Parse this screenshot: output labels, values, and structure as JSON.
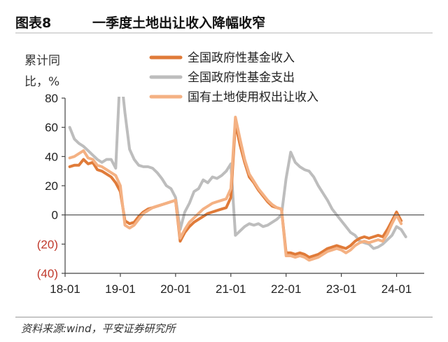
{
  "figure": {
    "number": "图表8",
    "title": "一季度土地出让收入降幅收窄",
    "source": "资料来源:wind，平安证券研究所"
  },
  "colors": {
    "axis": "#444444",
    "tick_negative": "#c0392b",
    "tick_positive": "#222222"
  },
  "chart_data": {
    "type": "line",
    "title": "一季度土地出让收入降幅收窄",
    "ylabel": "累计同比，%",
    "xlabel": "",
    "ylim": [
      -40,
      80
    ],
    "xlim": [
      0,
      78
    ],
    "yticks": [
      {
        "value": 80,
        "label": "80"
      },
      {
        "value": 60,
        "label": "60"
      },
      {
        "value": 40,
        "label": "40"
      },
      {
        "value": 20,
        "label": "20"
      },
      {
        "value": 0,
        "label": "0"
      },
      {
        "value": -20,
        "label": "(20)"
      },
      {
        "value": -40,
        "label": "(40)"
      }
    ],
    "xticks": [
      {
        "value": 0,
        "label": "18-01"
      },
      {
        "value": 12,
        "label": "19-01"
      },
      {
        "value": 24,
        "label": "20-01"
      },
      {
        "value": 36,
        "label": "21-01"
      },
      {
        "value": 48,
        "label": "22-01"
      },
      {
        "value": 60,
        "label": "23-01"
      },
      {
        "value": 72,
        "label": "24-01"
      }
    ],
    "grid": false,
    "legend_position": "top-right",
    "series": [
      {
        "name": "全国政府性基金收入",
        "color": "#e07b39",
        "width": 4,
        "points": [
          [
            1,
            33
          ],
          [
            2,
            34
          ],
          [
            3,
            34
          ],
          [
            4,
            38
          ],
          [
            5,
            35
          ],
          [
            6,
            36
          ],
          [
            7,
            31
          ],
          [
            8,
            30
          ],
          [
            9,
            28
          ],
          [
            10,
            26
          ],
          [
            11,
            22
          ],
          [
            12,
            16
          ],
          [
            13,
            -4
          ],
          [
            14,
            -6
          ],
          [
            15,
            -5
          ],
          [
            16,
            -1
          ],
          [
            17,
            2
          ],
          [
            18,
            4
          ],
          [
            19,
            5
          ],
          [
            20,
            6
          ],
          [
            21,
            7
          ],
          [
            22,
            8
          ],
          [
            23,
            9
          ],
          [
            24,
            10
          ],
          [
            25,
            -18
          ],
          [
            26,
            -12
          ],
          [
            27,
            -8
          ],
          [
            28,
            -5
          ],
          [
            29,
            -3
          ],
          [
            30,
            -1
          ],
          [
            31,
            1
          ],
          [
            32,
            2
          ],
          [
            33,
            3
          ],
          [
            34,
            4
          ],
          [
            35,
            5
          ],
          [
            36,
            12
          ],
          [
            37,
            63
          ],
          [
            38,
            48
          ],
          [
            39,
            36
          ],
          [
            40,
            26
          ],
          [
            41,
            22
          ],
          [
            42,
            17
          ],
          [
            43,
            13
          ],
          [
            44,
            9
          ],
          [
            45,
            6
          ],
          [
            46,
            5
          ],
          [
            47,
            4
          ],
          [
            48,
            -26
          ],
          [
            49,
            -26
          ],
          [
            50,
            -27
          ],
          [
            51,
            -26
          ],
          [
            52,
            -27
          ],
          [
            53,
            -29
          ],
          [
            54,
            -28
          ],
          [
            55,
            -27
          ],
          [
            56,
            -25
          ],
          [
            57,
            -23
          ],
          [
            58,
            -22
          ],
          [
            59,
            -21
          ],
          [
            60,
            -22
          ],
          [
            61,
            -23
          ],
          [
            62,
            -21
          ],
          [
            63,
            -18
          ],
          [
            64,
            -16
          ],
          [
            65,
            -15
          ],
          [
            66,
            -16
          ],
          [
            67,
            -15
          ],
          [
            68,
            -14
          ],
          [
            69,
            -15
          ],
          [
            70,
            -10
          ],
          [
            71,
            -4
          ],
          [
            72,
            2
          ],
          [
            73,
            -4
          ]
        ]
      },
      {
        "name": "全国政府性基金支出",
        "color": "#bdbdbd",
        "width": 4,
        "points": [
          [
            1,
            60
          ],
          [
            2,
            52
          ],
          [
            3,
            49
          ],
          [
            4,
            47
          ],
          [
            5,
            44
          ],
          [
            6,
            41
          ],
          [
            7,
            38
          ],
          [
            8,
            36
          ],
          [
            9,
            38
          ],
          [
            10,
            38
          ],
          [
            11,
            32
          ],
          [
            12,
            100
          ],
          [
            13,
            70
          ],
          [
            14,
            45
          ],
          [
            15,
            38
          ],
          [
            16,
            34
          ],
          [
            17,
            33
          ],
          [
            18,
            33
          ],
          [
            19,
            32
          ],
          [
            20,
            29
          ],
          [
            21,
            25
          ],
          [
            22,
            20
          ],
          [
            23,
            18
          ],
          [
            24,
            12
          ],
          [
            25,
            -10
          ],
          [
            26,
            2
          ],
          [
            27,
            8
          ],
          [
            28,
            16
          ],
          [
            29,
            18
          ],
          [
            30,
            24
          ],
          [
            31,
            22
          ],
          [
            32,
            26
          ],
          [
            33,
            25
          ],
          [
            34,
            27
          ],
          [
            35,
            30
          ],
          [
            36,
            35
          ],
          [
            37,
            -14
          ],
          [
            38,
            -11
          ],
          [
            39,
            -8
          ],
          [
            40,
            -6
          ],
          [
            41,
            -7
          ],
          [
            42,
            -6
          ],
          [
            43,
            -8
          ],
          [
            44,
            -7
          ],
          [
            45,
            -5
          ],
          [
            46,
            -3
          ],
          [
            47,
            0
          ],
          [
            48,
            25
          ],
          [
            49,
            43
          ],
          [
            50,
            36
          ],
          [
            51,
            33
          ],
          [
            52,
            31
          ],
          [
            53,
            30
          ],
          [
            54,
            26
          ],
          [
            55,
            20
          ],
          [
            56,
            15
          ],
          [
            57,
            10
          ],
          [
            58,
            4
          ],
          [
            59,
            0
          ],
          [
            60,
            -4
          ],
          [
            61,
            -8
          ],
          [
            62,
            -12
          ],
          [
            63,
            -14
          ],
          [
            64,
            -18
          ],
          [
            65,
            -19
          ],
          [
            66,
            -20
          ],
          [
            67,
            -23
          ],
          [
            68,
            -22
          ],
          [
            69,
            -20
          ],
          [
            70,
            -17
          ],
          [
            71,
            -14
          ],
          [
            72,
            -8
          ],
          [
            73,
            -10
          ],
          [
            74,
            -15
          ]
        ]
      },
      {
        "name": "国有土地使用权出让收入",
        "color": "#f4b183",
        "width": 4,
        "points": [
          [
            1,
            39
          ],
          [
            2,
            40
          ],
          [
            3,
            42
          ],
          [
            4,
            44
          ],
          [
            5,
            39
          ],
          [
            6,
            38
          ],
          [
            7,
            34
          ],
          [
            8,
            33
          ],
          [
            9,
            31
          ],
          [
            10,
            29
          ],
          [
            11,
            27
          ],
          [
            12,
            20
          ],
          [
            13,
            -7
          ],
          [
            14,
            -9
          ],
          [
            15,
            -7
          ],
          [
            16,
            -3
          ],
          [
            17,
            1
          ],
          [
            18,
            3
          ],
          [
            19,
            5
          ],
          [
            20,
            6
          ],
          [
            21,
            7
          ],
          [
            22,
            8
          ],
          [
            23,
            9
          ],
          [
            24,
            10
          ],
          [
            25,
            -16
          ],
          [
            26,
            -10
          ],
          [
            27,
            -5
          ],
          [
            28,
            -2
          ],
          [
            29,
            1
          ],
          [
            30,
            4
          ],
          [
            31,
            6
          ],
          [
            32,
            8
          ],
          [
            33,
            9
          ],
          [
            34,
            10
          ],
          [
            35,
            11
          ],
          [
            36,
            18
          ],
          [
            37,
            67
          ],
          [
            38,
            52
          ],
          [
            39,
            38
          ],
          [
            40,
            28
          ],
          [
            41,
            23
          ],
          [
            42,
            18
          ],
          [
            43,
            14
          ],
          [
            44,
            10
          ],
          [
            45,
            7
          ],
          [
            46,
            5
          ],
          [
            47,
            4
          ],
          [
            48,
            -28
          ],
          [
            49,
            -28
          ],
          [
            50,
            -29
          ],
          [
            51,
            -28
          ],
          [
            52,
            -29
          ],
          [
            53,
            -31
          ],
          [
            54,
            -30
          ],
          [
            55,
            -29
          ],
          [
            56,
            -27
          ],
          [
            57,
            -25
          ],
          [
            58,
            -24
          ],
          [
            59,
            -23
          ],
          [
            60,
            -24
          ],
          [
            61,
            -26
          ],
          [
            62,
            -24
          ],
          [
            63,
            -21
          ],
          [
            64,
            -19
          ],
          [
            65,
            -18
          ],
          [
            66,
            -19
          ],
          [
            67,
            -18
          ],
          [
            68,
            -17
          ],
          [
            69,
            -18
          ],
          [
            70,
            -13
          ],
          [
            71,
            -6
          ],
          [
            72,
            0
          ],
          [
            73,
            -6
          ]
        ]
      }
    ]
  }
}
